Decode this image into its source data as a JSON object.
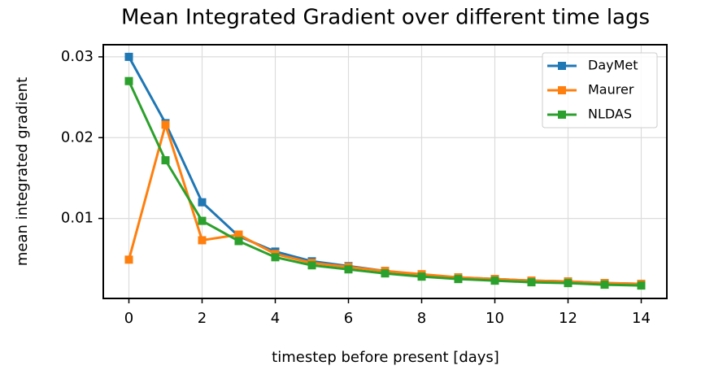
{
  "chart_data": {
    "type": "line",
    "title": "Mean Integrated Gradient over different time lags",
    "xlabel": "timestep before present [days]",
    "ylabel": "mean integrated gradient",
    "x": [
      0,
      1,
      2,
      3,
      4,
      5,
      6,
      7,
      8,
      9,
      10,
      11,
      12,
      13,
      14
    ],
    "series": [
      {
        "name": "DayMet",
        "color": "#1f77b4",
        "values": [
          0.03,
          0.0218,
          0.012,
          0.0078,
          0.0059,
          0.0047,
          0.0041,
          0.0035,
          0.003,
          0.0027,
          0.0025,
          0.0023,
          0.0022,
          0.002,
          0.0019
        ]
      },
      {
        "name": "Maurer",
        "color": "#ff7f0e",
        "values": [
          0.0049,
          0.0216,
          0.0073,
          0.008,
          0.0056,
          0.0045,
          0.004,
          0.0035,
          0.0031,
          0.0027,
          0.0025,
          0.0023,
          0.0022,
          0.002,
          0.0019
        ]
      },
      {
        "name": "NLDAS",
        "color": "#2ca02c",
        "values": [
          0.027,
          0.0172,
          0.0097,
          0.0072,
          0.0052,
          0.0042,
          0.0037,
          0.0032,
          0.0028,
          0.0025,
          0.0023,
          0.0021,
          0.002,
          0.0018,
          0.0017
        ]
      }
    ],
    "xlim": [
      -0.7,
      14.7
    ],
    "xticks": [
      0,
      2,
      4,
      6,
      8,
      10,
      12,
      14
    ],
    "ylim": [
      0.0001,
      0.0315
    ],
    "yticks": [
      0.01,
      0.02,
      0.03
    ],
    "grid": true,
    "legend": "upper right"
  }
}
